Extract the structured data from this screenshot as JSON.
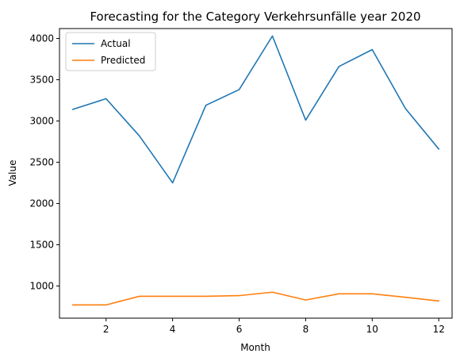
{
  "chart_data": {
    "type": "line",
    "title": "Forecasting for the Category Verkehrsunfälle year 2020",
    "xlabel": "Month",
    "ylabel": "Value",
    "x": [
      1,
      2,
      3,
      4,
      5,
      6,
      7,
      8,
      9,
      10,
      11,
      12
    ],
    "xlim": [
      0.6,
      12.4
    ],
    "ylim": [
      610,
      4120
    ],
    "xticks": [
      2,
      4,
      6,
      8,
      10,
      12
    ],
    "yticks": [
      1000,
      1500,
      2000,
      2500,
      3000,
      3500,
      4000
    ],
    "grid": false,
    "legend_position": "top-left",
    "series": [
      {
        "name": "Actual",
        "color": "#1f77b4",
        "values": [
          3140,
          3270,
          2820,
          2250,
          3190,
          3380,
          4030,
          3010,
          3660,
          3865,
          3150,
          2660
        ]
      },
      {
        "name": "Predicted",
        "color": "#ff7f0e",
        "values": [
          770,
          770,
          875,
          875,
          875,
          883,
          925,
          830,
          905,
          905,
          863,
          818
        ]
      }
    ]
  }
}
